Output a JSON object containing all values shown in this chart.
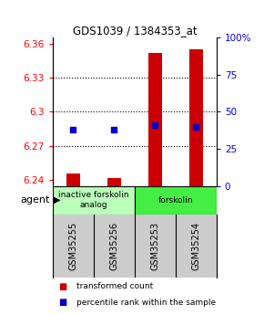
{
  "title": "GDS1039 / 1384353_at",
  "samples": [
    "GSM35255",
    "GSM35256",
    "GSM35253",
    "GSM35254"
  ],
  "bar_values": [
    6.2455,
    6.2415,
    6.352,
    6.355
  ],
  "bar_base": 6.235,
  "percentile_values": [
    6.284,
    6.284,
    6.288,
    6.287
  ],
  "ylim_left": [
    6.235,
    6.365
  ],
  "ylim_right": [
    0,
    100
  ],
  "yticks_left": [
    6.24,
    6.27,
    6.3,
    6.33,
    6.36
  ],
  "yticks_right": [
    0,
    25,
    50,
    75,
    100
  ],
  "ytick_labels_left": [
    "6.24",
    "6.27",
    "6.3",
    "6.33",
    "6.36"
  ],
  "ytick_labels_right": [
    "0",
    "25",
    "50",
    "75",
    "100%"
  ],
  "hlines": [
    6.27,
    6.3,
    6.33
  ],
  "bar_color": "#cc0000",
  "dot_color": "#0000cc",
  "agent_groups": [
    {
      "label": "inactive forskolin\nanalog",
      "color": "#bbffbb",
      "span": [
        0,
        2
      ]
    },
    {
      "label": "forskolin",
      "color": "#44ee44",
      "span": [
        2,
        4
      ]
    }
  ],
  "legend_items": [
    {
      "color": "#cc0000",
      "label": "transformed count"
    },
    {
      "color": "#0000cc",
      "label": "percentile rank within the sample"
    }
  ],
  "bar_width": 0.32,
  "agent_label": "agent",
  "background_color": "#ffffff",
  "plot_bg": "#ffffff",
  "sample_box_color": "#cccccc"
}
